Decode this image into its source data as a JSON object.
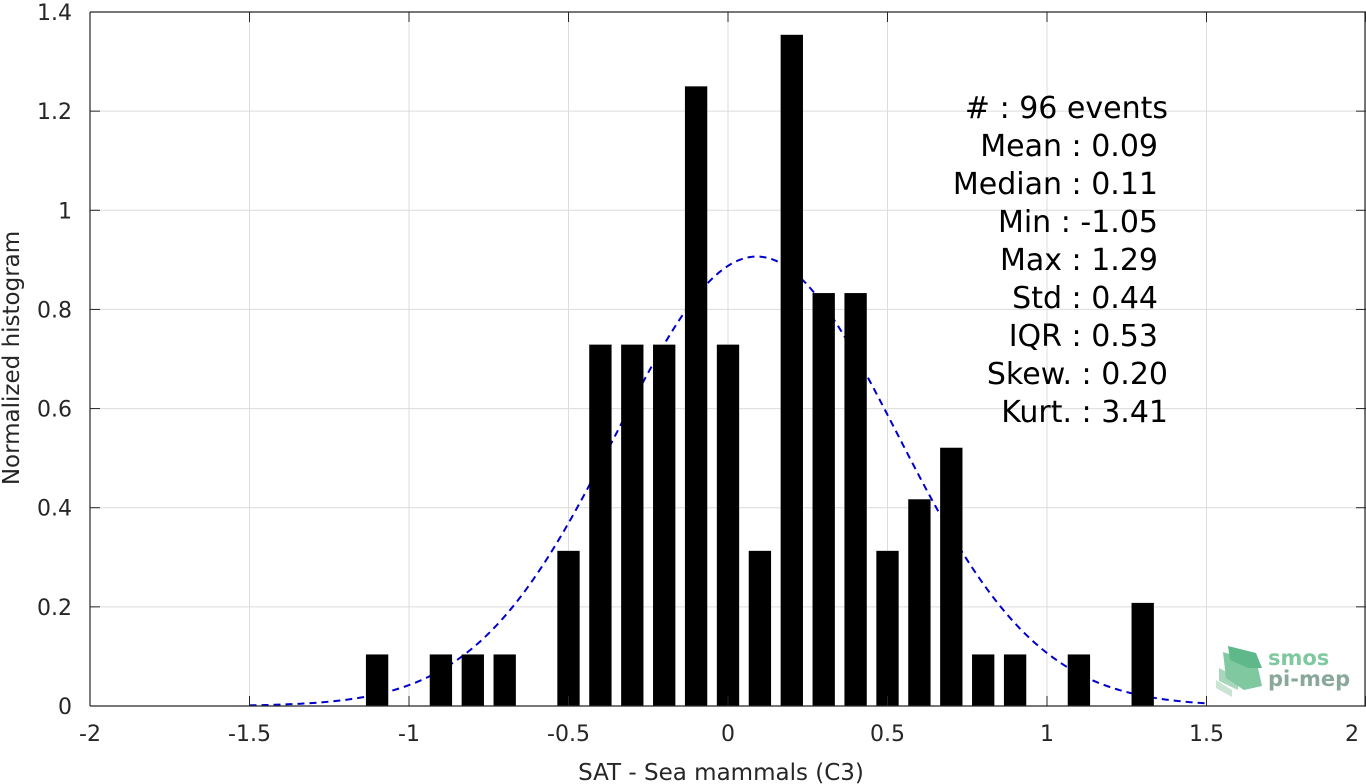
{
  "chart_data": {
    "type": "bar",
    "xlabel": "SAT - Sea mammals (C3)",
    "ylabel": "Normalized histogram",
    "xlim": [
      -2,
      2
    ],
    "ylim": [
      0,
      1.4
    ],
    "xticks": [
      -2,
      -1.5,
      -1,
      -0.5,
      0,
      0.5,
      1,
      1.5,
      2
    ],
    "xtick_labels": [
      "-2",
      "-1.5",
      "-1",
      "-0.5",
      "0",
      "0.5",
      "1",
      "1.5",
      "2"
    ],
    "yticks": [
      0,
      0.2,
      0.4,
      0.6,
      0.8,
      1,
      1.2,
      1.4
    ],
    "ytick_labels": [
      "0",
      "0.2",
      "0.4",
      "0.6",
      "0.8",
      "1",
      "1.2",
      "1.4"
    ],
    "grid": true,
    "bar_width": 0.07,
    "bars": [
      {
        "x": -1.1,
        "y": 0.104
      },
      {
        "x": -0.9,
        "y": 0.104
      },
      {
        "x": -0.8,
        "y": 0.104
      },
      {
        "x": -0.7,
        "y": 0.104
      },
      {
        "x": -0.5,
        "y": 0.313
      },
      {
        "x": -0.4,
        "y": 0.729
      },
      {
        "x": -0.3,
        "y": 0.729
      },
      {
        "x": -0.2,
        "y": 0.729
      },
      {
        "x": -0.1,
        "y": 1.25
      },
      {
        "x": 0.0,
        "y": 0.729
      },
      {
        "x": 0.1,
        "y": 0.313
      },
      {
        "x": 0.2,
        "y": 1.354
      },
      {
        "x": 0.3,
        "y": 0.833
      },
      {
        "x": 0.4,
        "y": 0.833
      },
      {
        "x": 0.5,
        "y": 0.313
      },
      {
        "x": 0.6,
        "y": 0.417
      },
      {
        "x": 0.7,
        "y": 0.521
      },
      {
        "x": 0.8,
        "y": 0.104
      },
      {
        "x": 0.9,
        "y": 0.104
      },
      {
        "x": 1.1,
        "y": 0.104
      },
      {
        "x": 1.3,
        "y": 0.208
      }
    ],
    "fit_curve": {
      "type": "normal",
      "mean": 0.09,
      "std": 0.44,
      "x_range": [
        -1.5,
        1.5
      ],
      "color": "#0000cc",
      "style": "dashed"
    },
    "bar_color": "#000000",
    "stats_labels": [
      "#  : 96 events",
      "Mean : 0.09",
      "Median : 0.11",
      "Min : -1.05",
      "Max : 1.29",
      "Std : 0.44",
      "IQR : 0.53",
      "Skew. : 0.20",
      "Kurt. : 3.41"
    ]
  },
  "logo": {
    "line1": "smos",
    "line2": "pi-mep",
    "color1": "#7fc8a0",
    "color2": "#8aa89a"
  }
}
